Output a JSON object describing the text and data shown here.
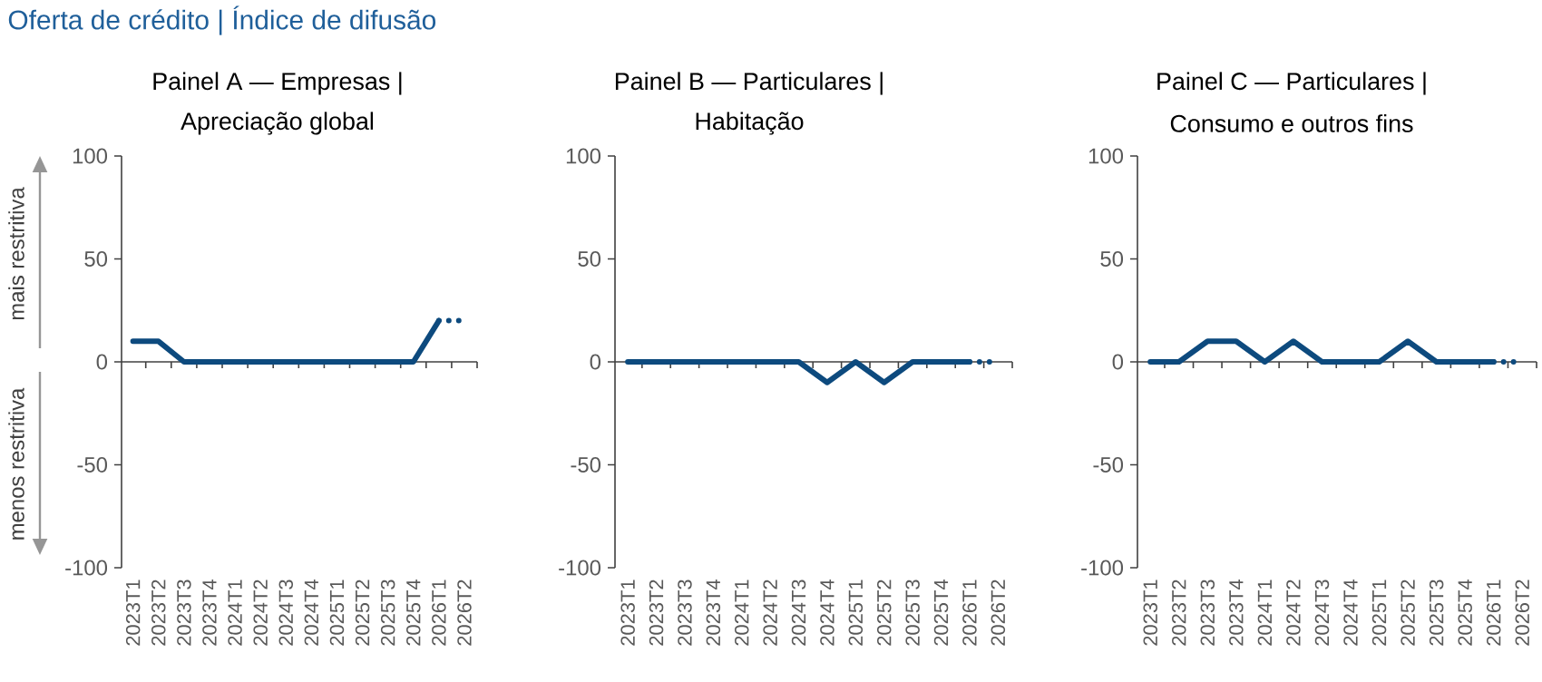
{
  "chart_data": [
    {
      "type": "line",
      "title": "Painel A — Empresas |",
      "subtitle": "Apreciação global",
      "annotations": [
        "Oferta de crédito | Índice de difusão",
        "mais restritiva",
        "menos restritiva"
      ],
      "categories": [
        "2023T1",
        "2023T2",
        "2023T3",
        "2023T4",
        "2024T1",
        "2024T2",
        "2024T3",
        "2024T4",
        "2025T1",
        "2025T2",
        "2025T3",
        "2025T4",
        "2026T1",
        "2026T2"
      ],
      "ylim": [
        -100,
        100
      ],
      "yticks": [
        -100,
        -50,
        0,
        50,
        100
      ],
      "series": [
        {
          "color": "#0d4a7e",
          "values": [
            10,
            10,
            0,
            0,
            0,
            0,
            0,
            0,
            0,
            0,
            0,
            0,
            20,
            null
          ]
        },
        {
          "color": "#0d4a7e",
          "line_style": "dotted",
          "values": [
            null,
            null,
            null,
            null,
            null,
            null,
            null,
            null,
            null,
            null,
            null,
            null,
            20,
            20
          ]
        }
      ]
    },
    {
      "type": "line",
      "title": "Painel B — Particulares |",
      "subtitle": "Habitação",
      "categories": [
        "2023T1",
        "2023T2",
        "2023T3",
        "2023T4",
        "2024T1",
        "2024T2",
        "2024T3",
        "2024T4",
        "2025T1",
        "2025T2",
        "2025T3",
        "2025T4",
        "2026T1",
        "2026T2"
      ],
      "ylim": [
        -100,
        100
      ],
      "yticks": [
        -100,
        -50,
        0,
        50,
        100
      ],
      "series": [
        {
          "color": "#0d4a7e",
          "values": [
            0,
            0,
            0,
            0,
            0,
            0,
            0,
            -10,
            0,
            -10,
            0,
            0,
            0,
            null
          ]
        },
        {
          "color": "#0d4a7e",
          "line_style": "dotted",
          "values": [
            null,
            null,
            null,
            null,
            null,
            null,
            null,
            null,
            null,
            null,
            null,
            null,
            0,
            0
          ]
        }
      ]
    },
    {
      "type": "line",
      "title": "Painel C — Particulares |",
      "subtitle": "Consumo e outros fins",
      "categories": [
        "2023T1",
        "2023T2",
        "2023T3",
        "2023T4",
        "2024T1",
        "2024T2",
        "2024T3",
        "2024T4",
        "2025T1",
        "2025T2",
        "2025T3",
        "2025T4",
        "2026T1",
        "2026T2"
      ],
      "ylim": [
        -100,
        100
      ],
      "yticks": [
        -100,
        -50,
        0,
        50,
        100
      ],
      "series": [
        {
          "color": "#0d4a7e",
          "values": [
            0,
            0,
            10,
            10,
            0,
            10,
            0,
            0,
            0,
            10,
            0,
            0,
            0,
            null
          ]
        },
        {
          "color": "#0d4a7e",
          "line_style": "dotted",
          "values": [
            null,
            null,
            null,
            null,
            null,
            null,
            null,
            null,
            null,
            null,
            null,
            null,
            0,
            0
          ]
        }
      ]
    }
  ]
}
